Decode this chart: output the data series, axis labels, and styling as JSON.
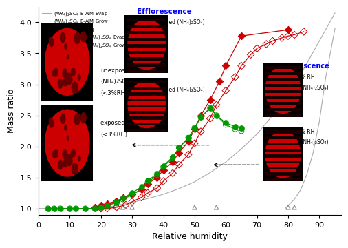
{
  "xlabel": "Relative humidity",
  "ylabel": "Mass ratio",
  "xlim": [
    0,
    97
  ],
  "ylim": [
    0.9,
    4.25
  ],
  "xticks": [
    0,
    10,
    20,
    30,
    40,
    50,
    60,
    70,
    80,
    90
  ],
  "yticks": [
    1.0,
    1.5,
    2.0,
    2.5,
    3.0,
    3.5,
    4.0
  ],
  "eaim_evap_x": [
    0,
    5,
    10,
    15,
    20,
    25,
    30,
    35,
    40,
    45,
    50,
    55,
    60,
    65,
    70,
    75,
    80,
    85,
    90,
    95
  ],
  "eaim_evap_y": [
    1.0,
    1.0,
    1.0,
    1.0,
    1.0,
    1.05,
    1.1,
    1.16,
    1.23,
    1.32,
    1.43,
    1.58,
    1.75,
    1.96,
    2.2,
    2.5,
    2.85,
    3.25,
    3.7,
    4.15
  ],
  "eaim_grow_x": [
    79,
    80,
    82,
    84,
    86,
    88,
    90,
    92,
    95
  ],
  "eaim_grow_y": [
    1.0,
    1.05,
    1.15,
    1.3,
    1.55,
    1.9,
    2.4,
    3.1,
    3.9
  ],
  "edb_x": [
    18,
    20,
    22,
    25,
    27,
    30,
    50,
    57,
    80,
    82
  ],
  "edb_y": [
    1.02,
    1.02,
    1.02,
    1.02,
    1.02,
    1.02,
    1.02,
    1.02,
    1.02,
    1.02
  ],
  "tea_evap_x": [
    18,
    20,
    22,
    25,
    27,
    30,
    33,
    35,
    38,
    40,
    43,
    45,
    48,
    50,
    52,
    55,
    58,
    60,
    65,
    80
  ],
  "tea_evap_y": [
    1.02,
    1.05,
    1.08,
    1.12,
    1.17,
    1.23,
    1.31,
    1.4,
    1.5,
    1.62,
    1.75,
    1.9,
    2.08,
    2.28,
    2.5,
    2.75,
    3.05,
    3.3,
    3.78,
    3.88
  ],
  "tea_grow_x": [
    20,
    22,
    25,
    28,
    30,
    33,
    35,
    38,
    40,
    43,
    45,
    48,
    50,
    52,
    55,
    57,
    60,
    63,
    65,
    68,
    70,
    73,
    75,
    78,
    80,
    82,
    85
  ],
  "tea_grow_y": [
    1.0,
    1.0,
    1.02,
    1.06,
    1.11,
    1.18,
    1.25,
    1.33,
    1.44,
    1.57,
    1.71,
    1.87,
    2.05,
    2.24,
    2.45,
    2.67,
    2.9,
    3.12,
    3.3,
    3.48,
    3.58,
    3.65,
    3.7,
    3.75,
    3.78,
    3.8,
    3.85
  ],
  "teahbs_evap_x": [
    3,
    5,
    7,
    10,
    12,
    15,
    18,
    20,
    22,
    25,
    27,
    30,
    33,
    35,
    38,
    40,
    43,
    45,
    48,
    50,
    52,
    55,
    57,
    60,
    63,
    65
  ],
  "teahbs_evap_y": [
    1.0,
    1.0,
    1.0,
    1.0,
    1.0,
    1.0,
    1.0,
    1.02,
    1.05,
    1.1,
    1.17,
    1.25,
    1.35,
    1.45,
    1.56,
    1.69,
    1.83,
    1.98,
    2.14,
    2.3,
    2.47,
    2.62,
    2.5,
    2.38,
    2.32,
    2.3
  ],
  "teahbs_grow_x": [
    3,
    5,
    7,
    10,
    12,
    15,
    18,
    20,
    22,
    25,
    27,
    30,
    33,
    35,
    38,
    40,
    43,
    45,
    48,
    50,
    52,
    55,
    57,
    60,
    63,
    65
  ],
  "teahbs_grow_y": [
    1.0,
    1.0,
    1.0,
    1.0,
    1.0,
    1.0,
    1.0,
    1.02,
    1.05,
    1.1,
    1.15,
    1.22,
    1.31,
    1.42,
    1.54,
    1.67,
    1.82,
    1.98,
    2.14,
    2.3,
    2.47,
    2.62,
    2.5,
    2.35,
    2.28,
    2.25
  ],
  "eaim_color": "#aaaaaa",
  "edb_color": "#888888",
  "tea_color": "#cc0000",
  "teahbs_color": "#009900",
  "efflorescence_label": "Efflorescence",
  "efflorescence_sub": "50.5% RH (exposed (NH₄)₂SO₄)",
  "deliquescence_label": "Deliquescence",
  "deliquescence_sub1": "70.5% RH",
  "deliquescence_sub2": "(exposed (NH₄)₂SO₄)",
  "mie473_label": "47.3% RH (exposed (NH₄)₂SO₄)",
  "mie512_sub1": "51.2% RH",
  "mie512_sub2": "(exposed (NH₄)₂SO₄)",
  "unexposed_line1": "unexposed",
  "unexposed_line2": "(NH₄)₂SO₄",
  "unexposed_line3": "(<3%RH)",
  "exposed_line1": "exposed (NH₄)₂SO₄",
  "exposed_line2": "(<3%RH)"
}
